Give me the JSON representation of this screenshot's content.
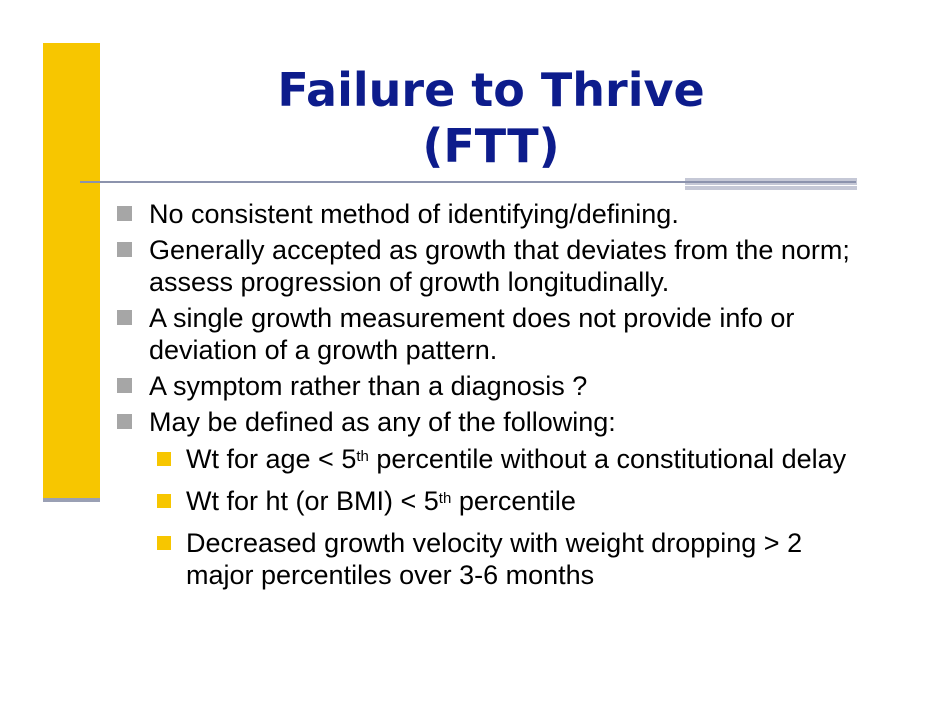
{
  "title": {
    "line1": "Failure to Thrive",
    "line2": "(FTT)"
  },
  "bullets": [
    {
      "text": "No consistent method of identifying/defining."
    },
    {
      "text": "Generally accepted as growth that deviates from the norm; assess progression of growth longitudinally."
    },
    {
      "text": "A single growth measurement does not provide info or deviation of a growth pattern."
    },
    {
      "text": "A symptom rather than a diagnosis ?"
    },
    {
      "text": "May be defined as any of the following:"
    }
  ],
  "sub_bullets": [
    {
      "pre": "Wt for age < 5",
      "sup": "th",
      "post": " percentile without a constitutional delay"
    },
    {
      "pre": "Wt for ht (or BMI) < 5",
      "sup": "th",
      "post": " percentile"
    },
    {
      "pre": "Decreased growth velocity with weight dropping > 2 major percentiles over 3-6  months",
      "sup": "",
      "post": ""
    }
  ],
  "colors": {
    "title": "#0d1c8c",
    "accent": "#f7c600",
    "bullet_marker": "#a6a6a6",
    "divider": "#8c93ad"
  }
}
